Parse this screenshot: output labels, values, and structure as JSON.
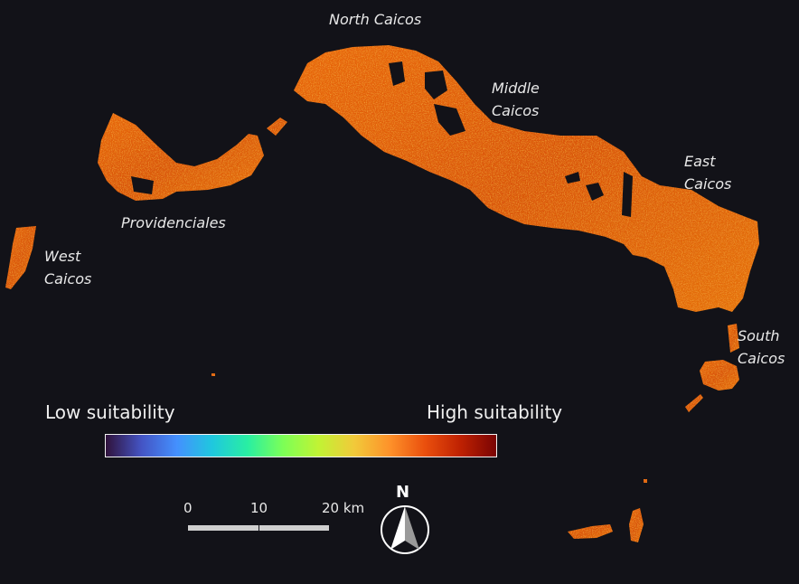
{
  "labels": {
    "north_caicos": "North Caicos",
    "middle_caicos": [
      "Middle",
      "Caicos"
    ],
    "east_caicos": [
      "East",
      "Caicos"
    ],
    "south_caicos": [
      "South",
      "Caicos"
    ],
    "providenciales": "Providenciales",
    "west_caicos": [
      "West",
      "Caicos"
    ]
  },
  "legend": {
    "low": "Low suitability",
    "high": "High suitability",
    "colormap": [
      "#30123b",
      "#4454c4",
      "#4490fe",
      "#1fc8de",
      "#29efa2",
      "#7dff56",
      "#c1f334",
      "#f1ca3a",
      "#fe922a",
      "#ea4f0d",
      "#be2102",
      "#7a0403"
    ]
  },
  "scale": {
    "ticks": [
      "0",
      "10",
      "20 km"
    ]
  },
  "north": {
    "letter": "N"
  },
  "colors": {
    "background": "#121218",
    "land_orange": "#e8630c",
    "land_dark": "#b4300a",
    "land_light": "#f5a02a",
    "water_inland": "#121218"
  }
}
